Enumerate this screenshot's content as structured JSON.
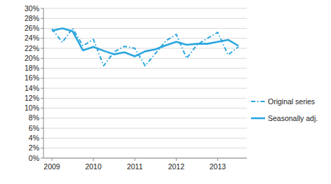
{
  "chart_data": {
    "type": "line",
    "categories": [
      "2009",
      null,
      null,
      null,
      "2010",
      null,
      null,
      null,
      "2011",
      null,
      null,
      null,
      "2012",
      null,
      null,
      null,
      "2013",
      null,
      null
    ],
    "series": [
      {
        "name": "Original series",
        "color": "#2aa6df",
        "line_style": "dashdot",
        "values": [
          25.9,
          23.2,
          26.0,
          22.5,
          23.8,
          18.5,
          21.3,
          22.4,
          22.0,
          18.5,
          21.0,
          23.5,
          24.8,
          20.0,
          22.7,
          24.0,
          25.2,
          20.7,
          22.3
        ]
      },
      {
        "name": "Seasonally adj.",
        "color": "#2aa6df",
        "line_style": "solid",
        "values": [
          25.5,
          26.0,
          25.4,
          21.6,
          22.3,
          21.5,
          20.8,
          21.2,
          20.4,
          21.4,
          21.8,
          22.6,
          23.3,
          22.7,
          22.9,
          22.9,
          23.3,
          23.7,
          22.5
        ]
      }
    ],
    "ylim": [
      0,
      30
    ],
    "yticks": [
      {
        "value": 0,
        "label": "0%"
      },
      {
        "value": 2,
        "label": "2%"
      },
      {
        "value": 4,
        "label": "4%"
      },
      {
        "value": 6,
        "label": "6%"
      },
      {
        "value": 8,
        "label": "8%"
      },
      {
        "value": 10,
        "label": "10%"
      },
      {
        "value": 12,
        "label": "12%"
      },
      {
        "value": 14,
        "label": "14%"
      },
      {
        "value": 16,
        "label": "16%"
      },
      {
        "value": 18,
        "label": "18%"
      },
      {
        "value": 20,
        "label": "20%"
      },
      {
        "value": 22,
        "label": "22%"
      },
      {
        "value": 24,
        "label": "24%"
      },
      {
        "value": 26,
        "label": "26%"
      },
      {
        "value": 28,
        "label": "28%"
      },
      {
        "value": 30,
        "label": "30%"
      }
    ],
    "grid": true,
    "legend": "right"
  }
}
